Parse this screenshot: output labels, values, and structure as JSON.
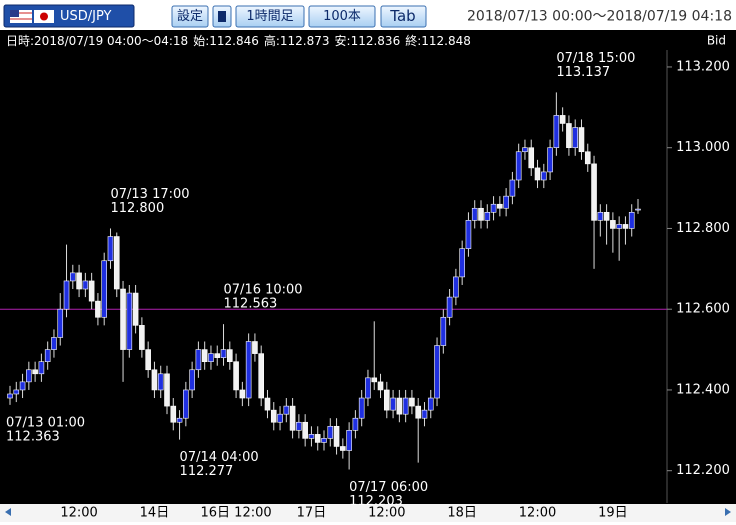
{
  "toolbar": {
    "symbol": "USD/JPY",
    "settings": "設定",
    "timeframe": "1時間足",
    "count": "100本",
    "tab": "Tab",
    "range": "2018/07/13 00:00～2018/07/19 04:18"
  },
  "info": {
    "datetime": "日時:2018/07/19 04:00～04:18",
    "open_label": "始:",
    "high_label": "高:",
    "low_label": "安:",
    "close_label": "終:",
    "price_type": "Bid"
  },
  "chart_data": {
    "type": "candlestick",
    "up_color": "#1f2fe0",
    "down_color": "#f2f2f2",
    "ylim": [
      112.12,
      113.242
    ],
    "yticks": [
      {
        "value": 112.2,
        "label": "112.200"
      },
      {
        "value": 112.4,
        "label": "112.400"
      },
      {
        "value": 112.6,
        "label": "112.600"
      },
      {
        "value": 112.8,
        "label": "112.800"
      },
      {
        "value": 113.0,
        "label": "113.000"
      },
      {
        "value": 113.2,
        "label": "113.200"
      }
    ],
    "reference_line": {
      "value": 112.6,
      "color": "#b020b0"
    },
    "categories": [
      null,
      null,
      null,
      null,
      null,
      null,
      null,
      null,
      null,
      null,
      null,
      "12:00",
      null,
      null,
      null,
      null,
      null,
      null,
      null,
      null,
      null,
      null,
      null,
      "14日",
      null,
      null,
      null,
      null,
      null,
      null,
      null,
      null,
      null,
      null,
      null,
      null,
      "16日 12:00",
      null,
      null,
      null,
      null,
      null,
      null,
      null,
      null,
      null,
      null,
      null,
      "17日",
      null,
      null,
      null,
      null,
      null,
      null,
      null,
      null,
      null,
      null,
      null,
      "12:00",
      null,
      null,
      null,
      null,
      null,
      null,
      null,
      null,
      null,
      null,
      null,
      "18日",
      null,
      null,
      null,
      null,
      null,
      null,
      null,
      null,
      null,
      null,
      null,
      "12:00",
      null,
      null,
      null,
      null,
      null,
      null,
      null,
      null,
      null,
      null,
      null,
      "19日",
      null,
      null,
      null,
      null
    ],
    "open": [
      112.38,
      112.39,
      112.4,
      112.42,
      112.45,
      112.44,
      112.47,
      112.5,
      112.53,
      112.6,
      112.67,
      112.69,
      112.65,
      112.67,
      112.62,
      112.58,
      112.72,
      112.78,
      112.65,
      112.5,
      112.64,
      112.56,
      112.5,
      112.45,
      112.4,
      112.44,
      112.36,
      112.32,
      112.33,
      112.4,
      112.45,
      112.5,
      112.47,
      112.49,
      112.48,
      112.5,
      112.47,
      112.4,
      112.38,
      112.52,
      112.49,
      112.38,
      112.35,
      112.32,
      112.34,
      112.36,
      112.3,
      112.32,
      112.28,
      112.29,
      112.27,
      112.28,
      112.31,
      112.26,
      112.25,
      112.3,
      112.33,
      112.38,
      112.43,
      112.42,
      112.4,
      112.35,
      112.38,
      112.34,
      112.38,
      112.36,
      112.33,
      112.35,
      112.38,
      112.51,
      112.58,
      112.63,
      112.68,
      112.75,
      112.82,
      112.85,
      112.82,
      112.84,
      112.86,
      112.85,
      112.88,
      112.92,
      112.99,
      113.0,
      112.95,
      112.92,
      112.94,
      113.0,
      113.08,
      113.06,
      113.0,
      113.05,
      112.99,
      112.96,
      112.82,
      112.84,
      112.82,
      112.8,
      112.81,
      112.8,
      112.846
    ],
    "high": [
      112.41,
      112.42,
      112.44,
      112.47,
      112.47,
      112.49,
      112.52,
      112.55,
      112.64,
      112.76,
      112.71,
      112.71,
      112.69,
      112.69,
      112.64,
      112.74,
      112.8,
      112.79,
      112.67,
      112.66,
      112.66,
      112.58,
      112.52,
      112.47,
      112.46,
      112.46,
      112.38,
      112.35,
      112.42,
      112.47,
      112.52,
      112.52,
      112.51,
      112.51,
      112.563,
      112.52,
      112.49,
      112.42,
      112.54,
      112.54,
      112.51,
      112.4,
      112.37,
      112.36,
      112.38,
      112.38,
      112.34,
      112.34,
      112.31,
      112.31,
      112.3,
      112.33,
      112.33,
      112.28,
      112.32,
      112.35,
      112.4,
      112.45,
      112.57,
      112.44,
      112.42,
      112.4,
      112.4,
      112.4,
      112.4,
      112.38,
      112.37,
      112.4,
      112.53,
      112.6,
      112.65,
      112.7,
      112.77,
      112.84,
      112.87,
      112.87,
      112.86,
      112.88,
      112.88,
      112.9,
      112.94,
      113.01,
      113.02,
      113.02,
      112.97,
      112.96,
      113.02,
      113.137,
      113.1,
      113.08,
      113.07,
      113.07,
      113.01,
      112.98,
      112.86,
      112.86,
      112.84,
      112.83,
      112.83,
      112.86,
      112.873
    ],
    "low": [
      112.363,
      112.37,
      112.38,
      112.4,
      112.42,
      112.42,
      112.45,
      112.48,
      112.51,
      112.58,
      112.65,
      112.63,
      112.63,
      112.6,
      112.56,
      112.56,
      112.7,
      112.63,
      112.42,
      112.48,
      112.54,
      112.48,
      112.43,
      112.38,
      112.38,
      112.34,
      112.3,
      112.277,
      112.31,
      112.38,
      112.43,
      112.45,
      112.45,
      112.46,
      112.46,
      112.45,
      112.38,
      112.36,
      112.36,
      112.47,
      112.36,
      112.33,
      112.3,
      112.3,
      112.32,
      112.28,
      112.28,
      112.26,
      112.26,
      112.25,
      112.25,
      112.26,
      112.24,
      112.23,
      112.203,
      112.28,
      112.31,
      112.36,
      112.4,
      112.38,
      112.33,
      112.33,
      112.32,
      112.32,
      112.34,
      112.22,
      112.31,
      112.33,
      112.36,
      112.49,
      112.56,
      112.61,
      112.66,
      112.73,
      112.8,
      112.8,
      112.8,
      112.82,
      112.83,
      112.83,
      112.86,
      112.9,
      112.97,
      112.93,
      112.9,
      112.9,
      112.92,
      112.98,
      113.04,
      112.98,
      112.98,
      112.97,
      112.94,
      112.7,
      112.78,
      112.76,
      112.74,
      112.72,
      112.76,
      112.78,
      112.836
    ],
    "close": [
      112.39,
      112.4,
      112.42,
      112.45,
      112.44,
      112.47,
      112.5,
      112.53,
      112.6,
      112.67,
      112.69,
      112.65,
      112.67,
      112.62,
      112.58,
      112.72,
      112.78,
      112.65,
      112.5,
      112.64,
      112.56,
      112.5,
      112.45,
      112.4,
      112.44,
      112.36,
      112.32,
      112.33,
      112.4,
      112.45,
      112.5,
      112.47,
      112.49,
      112.48,
      112.5,
      112.47,
      112.4,
      112.38,
      112.52,
      112.49,
      112.38,
      112.35,
      112.32,
      112.34,
      112.36,
      112.3,
      112.32,
      112.28,
      112.29,
      112.27,
      112.28,
      112.31,
      112.26,
      112.25,
      112.3,
      112.33,
      112.38,
      112.43,
      112.42,
      112.4,
      112.35,
      112.38,
      112.34,
      112.38,
      112.36,
      112.33,
      112.35,
      112.38,
      112.51,
      112.58,
      112.63,
      112.68,
      112.75,
      112.82,
      112.85,
      112.82,
      112.84,
      112.86,
      112.85,
      112.88,
      112.92,
      112.99,
      113.0,
      112.95,
      112.92,
      112.94,
      113.0,
      113.08,
      113.06,
      113.0,
      113.05,
      112.99,
      112.96,
      112.82,
      112.84,
      112.82,
      112.8,
      112.81,
      112.8,
      112.84,
      112.848
    ],
    "annotations": [
      {
        "time": "07/13 01:00",
        "value": 112.363,
        "label": "112.363"
      },
      {
        "time": "07/13 17:00",
        "value": 112.8,
        "label": "112.800"
      },
      {
        "time": "07/14 04:00",
        "value": 112.277,
        "label": "112.277"
      },
      {
        "time": "07/16 10:00",
        "value": 112.563,
        "label": "112.563"
      },
      {
        "time": "07/17 06:00",
        "value": 112.203,
        "label": "112.203"
      },
      {
        "time": "07/18 15:00",
        "value": 113.137,
        "label": "113.137"
      }
    ]
  }
}
